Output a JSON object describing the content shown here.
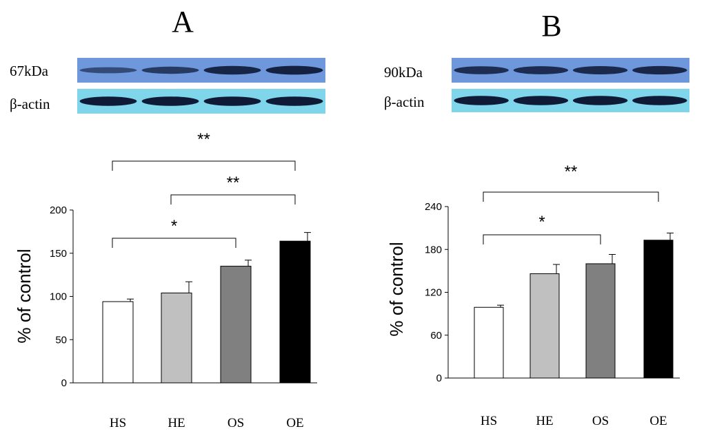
{
  "panels": [
    {
      "letter": "A",
      "blot_labels": [
        "67kDa",
        "β-actin"
      ],
      "band_intensity": [
        [
          0.35,
          0.55,
          0.8,
          0.85
        ],
        [
          0.95,
          0.95,
          0.95,
          0.95
        ]
      ],
      "colors": {
        "blot_top": "#6f97dc",
        "blot_bottom": "#7fd6ea"
      }
    },
    {
      "letter": "B",
      "blot_labels": [
        "90kDa",
        "β-actin"
      ],
      "band_intensity": [
        [
          0.7,
          0.72,
          0.75,
          0.78
        ],
        [
          0.95,
          0.95,
          0.95,
          0.95
        ]
      ],
      "colors": {
        "blot_top": "#6f97dc",
        "blot_bottom": "#7fd6ea"
      }
    }
  ],
  "chart_data": [
    {
      "type": "bar",
      "categories": [
        "HS",
        "HE",
        "OS",
        "OE"
      ],
      "values": [
        94,
        104,
        135,
        164
      ],
      "errors": [
        3,
        13,
        7,
        10
      ],
      "ylabel": "% of control",
      "ylim": [
        0,
        200
      ],
      "yticks": [
        0,
        50,
        100,
        150,
        200
      ],
      "bar_colors": [
        "#ffffff",
        "#c0c0c0",
        "#808080",
        "#000000"
      ],
      "significance": [
        {
          "from": 0,
          "to": 2,
          "label": "*"
        },
        {
          "from": 1,
          "to": 3,
          "label": "**"
        },
        {
          "from": 0,
          "to": 3,
          "label": "**"
        }
      ]
    },
    {
      "type": "bar",
      "categories": [
        "HS",
        "HE",
        "OS",
        "OE"
      ],
      "values": [
        99,
        146,
        160,
        193
      ],
      "errors": [
        3,
        13,
        13,
        10
      ],
      "ylabel": "% of control",
      "ylim": [
        0,
        240
      ],
      "yticks": [
        0,
        60,
        120,
        180,
        240
      ],
      "bar_colors": [
        "#ffffff",
        "#c0c0c0",
        "#808080",
        "#000000"
      ],
      "significance": [
        {
          "from": 0,
          "to": 2,
          "label": "*"
        },
        {
          "from": 0,
          "to": 3,
          "label": "**"
        }
      ]
    }
  ]
}
